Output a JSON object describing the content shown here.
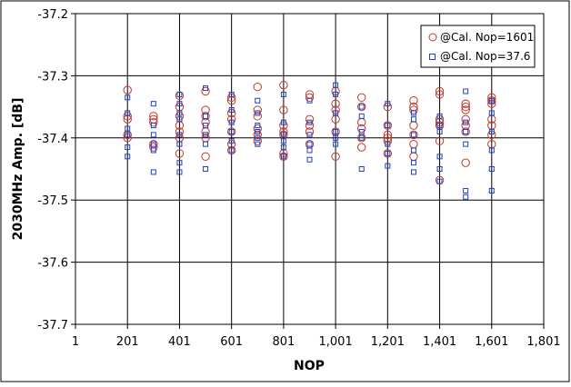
{
  "chart_data": {
    "type": "scatter",
    "xlabel": "NOP",
    "ylabel": "2030MHz Amp. [dB]",
    "xlim": [
      1,
      1801
    ],
    "ylim": [
      -37.7,
      -37.2
    ],
    "x_ticks": [
      "1",
      "201",
      "401",
      "601",
      "801",
      "1,001",
      "1,201",
      "1,401",
      "1,601",
      "1,801"
    ],
    "y_ticks": [
      "-37.2",
      "-37.3",
      "-37.4",
      "-37.5",
      "-37.6",
      "-37.7"
    ],
    "grid": true,
    "legend_position": "top-right",
    "series": [
      {
        "name": "@Cal. Nop=1601",
        "marker": "circle",
        "color": "#c0392b",
        "points": [
          [
            201,
            -37.323
          ],
          [
            201,
            -37.365
          ],
          [
            201,
            -37.37
          ],
          [
            201,
            -37.395
          ],
          [
            201,
            -37.4
          ],
          [
            301,
            -37.365
          ],
          [
            301,
            -37.37
          ],
          [
            301,
            -37.375
          ],
          [
            301,
            -37.41
          ],
          [
            301,
            -37.415
          ],
          [
            401,
            -37.332
          ],
          [
            401,
            -37.35
          ],
          [
            401,
            -37.365
          ],
          [
            401,
            -37.38
          ],
          [
            401,
            -37.39
          ],
          [
            401,
            -37.4
          ],
          [
            401,
            -37.425
          ],
          [
            501,
            -37.325
          ],
          [
            501,
            -37.355
          ],
          [
            501,
            -37.365
          ],
          [
            501,
            -37.375
          ],
          [
            501,
            -37.39
          ],
          [
            501,
            -37.4
          ],
          [
            501,
            -37.43
          ],
          [
            601,
            -37.335
          ],
          [
            601,
            -37.34
          ],
          [
            601,
            -37.36
          ],
          [
            601,
            -37.37
          ],
          [
            601,
            -37.39
          ],
          [
            601,
            -37.41
          ],
          [
            601,
            -37.42
          ],
          [
            701,
            -37.318
          ],
          [
            701,
            -37.355
          ],
          [
            701,
            -37.365
          ],
          [
            701,
            -37.385
          ],
          [
            701,
            -37.395
          ],
          [
            701,
            -37.405
          ],
          [
            801,
            -37.315
          ],
          [
            801,
            -37.355
          ],
          [
            801,
            -37.38
          ],
          [
            801,
            -37.39
          ],
          [
            801,
            -37.395
          ],
          [
            801,
            -37.425
          ],
          [
            801,
            -37.43
          ],
          [
            901,
            -37.33
          ],
          [
            901,
            -37.335
          ],
          [
            901,
            -37.37
          ],
          [
            901,
            -37.38
          ],
          [
            901,
            -37.39
          ],
          [
            901,
            -37.41
          ],
          [
            1001,
            -37.325
          ],
          [
            1001,
            -37.345
          ],
          [
            1001,
            -37.355
          ],
          [
            1001,
            -37.37
          ],
          [
            1001,
            -37.39
          ],
          [
            1001,
            -37.43
          ],
          [
            1101,
            -37.335
          ],
          [
            1101,
            -37.35
          ],
          [
            1101,
            -37.375
          ],
          [
            1101,
            -37.385
          ],
          [
            1101,
            -37.4
          ],
          [
            1101,
            -37.415
          ],
          [
            1201,
            -37.35
          ],
          [
            1201,
            -37.38
          ],
          [
            1201,
            -37.395
          ],
          [
            1201,
            -37.4
          ],
          [
            1201,
            -37.405
          ],
          [
            1201,
            -37.425
          ],
          [
            1301,
            -37.34
          ],
          [
            1301,
            -37.35
          ],
          [
            1301,
            -37.355
          ],
          [
            1301,
            -37.38
          ],
          [
            1301,
            -37.395
          ],
          [
            1301,
            -37.41
          ],
          [
            1301,
            -37.43
          ],
          [
            1401,
            -37.325
          ],
          [
            1401,
            -37.33
          ],
          [
            1401,
            -37.37
          ],
          [
            1401,
            -37.375
          ],
          [
            1401,
            -37.38
          ],
          [
            1401,
            -37.405
          ],
          [
            1401,
            -37.468
          ],
          [
            1501,
            -37.345
          ],
          [
            1501,
            -37.35
          ],
          [
            1501,
            -37.355
          ],
          [
            1501,
            -37.37
          ],
          [
            1501,
            -37.38
          ],
          [
            1501,
            -37.39
          ],
          [
            1501,
            -37.44
          ],
          [
            1601,
            -37.335
          ],
          [
            1601,
            -37.34
          ],
          [
            1601,
            -37.345
          ],
          [
            1601,
            -37.37
          ],
          [
            1601,
            -37.38
          ],
          [
            1601,
            -37.395
          ],
          [
            1601,
            -37.41
          ]
        ]
      },
      {
        "name": "@Cal. Nop=37.6",
        "marker": "square",
        "color": "#1f3fbf",
        "points": [
          [
            201,
            -37.335
          ],
          [
            201,
            -37.36
          ],
          [
            201,
            -37.385
          ],
          [
            201,
            -37.395
          ],
          [
            201,
            -37.415
          ],
          [
            201,
            -37.43
          ],
          [
            301,
            -37.345
          ],
          [
            301,
            -37.38
          ],
          [
            301,
            -37.395
          ],
          [
            301,
            -37.41
          ],
          [
            301,
            -37.42
          ],
          [
            301,
            -37.455
          ],
          [
            401,
            -37.33
          ],
          [
            401,
            -37.345
          ],
          [
            401,
            -37.36
          ],
          [
            401,
            -37.37
          ],
          [
            401,
            -37.395
          ],
          [
            401,
            -37.41
          ],
          [
            401,
            -37.44
          ],
          [
            401,
            -37.455
          ],
          [
            501,
            -37.32
          ],
          [
            501,
            -37.365
          ],
          [
            501,
            -37.38
          ],
          [
            501,
            -37.395
          ],
          [
            501,
            -37.41
          ],
          [
            501,
            -37.45
          ],
          [
            601,
            -37.33
          ],
          [
            601,
            -37.355
          ],
          [
            601,
            -37.375
          ],
          [
            601,
            -37.39
          ],
          [
            601,
            -37.405
          ],
          [
            601,
            -37.42
          ],
          [
            701,
            -37.34
          ],
          [
            701,
            -37.36
          ],
          [
            701,
            -37.38
          ],
          [
            701,
            -37.39
          ],
          [
            701,
            -37.4
          ],
          [
            701,
            -37.41
          ],
          [
            801,
            -37.33
          ],
          [
            801,
            -37.375
          ],
          [
            801,
            -37.395
          ],
          [
            801,
            -37.405
          ],
          [
            801,
            -37.415
          ],
          [
            801,
            -37.43
          ],
          [
            901,
            -37.34
          ],
          [
            901,
            -37.375
          ],
          [
            901,
            -37.395
          ],
          [
            901,
            -37.41
          ],
          [
            901,
            -37.42
          ],
          [
            901,
            -37.435
          ],
          [
            1001,
            -37.315
          ],
          [
            1001,
            -37.33
          ],
          [
            1001,
            -37.36
          ],
          [
            1001,
            -37.39
          ],
          [
            1001,
            -37.4
          ],
          [
            1001,
            -37.41
          ],
          [
            1101,
            -37.35
          ],
          [
            1101,
            -37.365
          ],
          [
            1101,
            -37.39
          ],
          [
            1101,
            -37.4
          ],
          [
            1101,
            -37.45
          ],
          [
            1201,
            -37.345
          ],
          [
            1201,
            -37.38
          ],
          [
            1201,
            -37.41
          ],
          [
            1201,
            -37.425
          ],
          [
            1201,
            -37.445
          ],
          [
            1301,
            -37.36
          ],
          [
            1301,
            -37.37
          ],
          [
            1301,
            -37.395
          ],
          [
            1301,
            -37.42
          ],
          [
            1301,
            -37.44
          ],
          [
            1301,
            -37.455
          ],
          [
            1401,
            -37.365
          ],
          [
            1401,
            -37.38
          ],
          [
            1401,
            -37.39
          ],
          [
            1401,
            -37.43
          ],
          [
            1401,
            -37.45
          ],
          [
            1401,
            -37.47
          ],
          [
            1501,
            -37.325
          ],
          [
            1501,
            -37.375
          ],
          [
            1501,
            -37.39
          ],
          [
            1501,
            -37.41
          ],
          [
            1501,
            -37.485
          ],
          [
            1501,
            -37.495
          ],
          [
            1601,
            -37.34
          ],
          [
            1601,
            -37.36
          ],
          [
            1601,
            -37.39
          ],
          [
            1601,
            -37.42
          ],
          [
            1601,
            -37.45
          ],
          [
            1601,
            -37.485
          ]
        ]
      }
    ]
  }
}
